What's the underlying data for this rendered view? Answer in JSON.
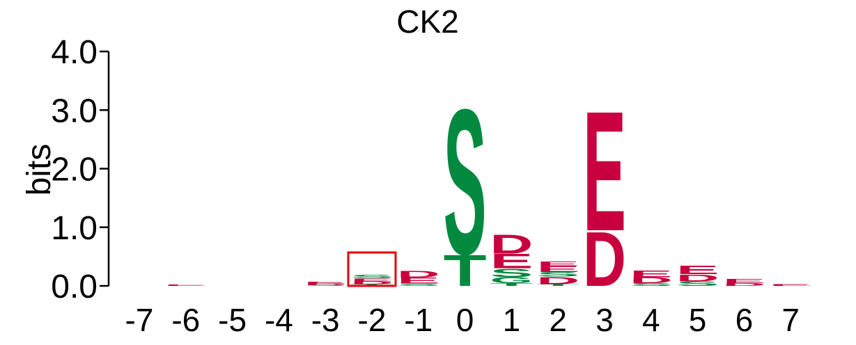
{
  "chart_data": {
    "type": "sequence-logo",
    "title": "CK2",
    "ylabel": "bits",
    "ylim": [
      0,
      4.0
    ],
    "yticks": [
      "0.0",
      "1.0",
      "2.0",
      "3.0",
      "4.0"
    ],
    "positions": [
      "-7",
      "-6",
      "-5",
      "-4",
      "-3",
      "-2",
      "-1",
      "0",
      "1",
      "2",
      "3",
      "4",
      "5",
      "6",
      "7"
    ],
    "highlighted_position": "-2",
    "colors": {
      "acidic": "#c8003f",
      "polar": "#00893f",
      "highlight": "#e8000b",
      "axis": "#000000"
    },
    "stacks": [
      {
        "position": "-7",
        "letters": []
      },
      {
        "position": "-6",
        "letters": [
          {
            "aa": "E",
            "bits": 0.02,
            "color": "#c8003f"
          }
        ]
      },
      {
        "position": "-5",
        "letters": []
      },
      {
        "position": "-4",
        "letters": []
      },
      {
        "position": "-3",
        "letters": [
          {
            "aa": "S",
            "bits": 0.02,
            "color": "#00893f"
          },
          {
            "aa": "D",
            "bits": 0.02,
            "color": "#c8003f"
          },
          {
            "aa": "E",
            "bits": 0.03,
            "color": "#c8003f"
          }
        ]
      },
      {
        "position": "-2",
        "letters": [
          {
            "aa": "T",
            "bits": 0.03,
            "color": "#00893f"
          },
          {
            "aa": "D",
            "bits": 0.05,
            "color": "#c8003f"
          },
          {
            "aa": "E",
            "bits": 0.05,
            "color": "#c8003f"
          },
          {
            "aa": "S",
            "bits": 0.06,
            "color": "#00893f"
          }
        ]
      },
      {
        "position": "-1",
        "letters": [
          {
            "aa": "S",
            "bits": 0.04,
            "color": "#00893f"
          },
          {
            "aa": "E",
            "bits": 0.1,
            "color": "#c8003f"
          },
          {
            "aa": "D",
            "bits": 0.12,
            "color": "#c8003f"
          }
        ]
      },
      {
        "position": "0",
        "letters": [
          {
            "aa": "T",
            "bits": 0.55,
            "color": "#00893f"
          },
          {
            "aa": "S",
            "bits": 2.55,
            "color": "#00893f"
          }
        ]
      },
      {
        "position": "1",
        "letters": [
          {
            "aa": "T",
            "bits": 0.05,
            "color": "#00893f"
          },
          {
            "aa": "G",
            "bits": 0.1,
            "color": "#00893f"
          },
          {
            "aa": "S",
            "bits": 0.15,
            "color": "#00893f"
          },
          {
            "aa": "E",
            "bits": 0.25,
            "color": "#c8003f"
          },
          {
            "aa": "D",
            "bits": 0.33,
            "color": "#c8003f"
          }
        ]
      },
      {
        "position": "2",
        "letters": [
          {
            "aa": "T",
            "bits": 0.03,
            "color": "#00893f"
          },
          {
            "aa": "D",
            "bits": 0.13,
            "color": "#c8003f"
          },
          {
            "aa": "S",
            "bits": 0.08,
            "color": "#00893f"
          },
          {
            "aa": "E",
            "bits": 0.1,
            "color": "#c8003f"
          },
          {
            "aa": "E",
            "bits": 0.08,
            "color": "#c8003f"
          }
        ]
      },
      {
        "position": "3",
        "letters": [
          {
            "aa": "D",
            "bits": 0.95,
            "color": "#c8003f"
          },
          {
            "aa": "E",
            "bits": 2.1,
            "color": "#c8003f"
          }
        ]
      },
      {
        "position": "4",
        "letters": [
          {
            "aa": "S",
            "bits": 0.05,
            "color": "#00893f"
          },
          {
            "aa": "D",
            "bits": 0.1,
            "color": "#c8003f"
          },
          {
            "aa": "E",
            "bits": 0.12,
            "color": "#c8003f"
          }
        ]
      },
      {
        "position": "5",
        "letters": [
          {
            "aa": "S",
            "bits": 0.08,
            "color": "#00893f"
          },
          {
            "aa": "D",
            "bits": 0.12,
            "color": "#c8003f"
          },
          {
            "aa": "E",
            "bits": 0.15,
            "color": "#c8003f"
          }
        ]
      },
      {
        "position": "6",
        "letters": [
          {
            "aa": "D",
            "bits": 0.05,
            "color": "#c8003f"
          },
          {
            "aa": "E",
            "bits": 0.07,
            "color": "#c8003f"
          }
        ]
      },
      {
        "position": "7",
        "letters": [
          {
            "aa": "E",
            "bits": 0.03,
            "color": "#c8003f"
          }
        ]
      }
    ]
  }
}
